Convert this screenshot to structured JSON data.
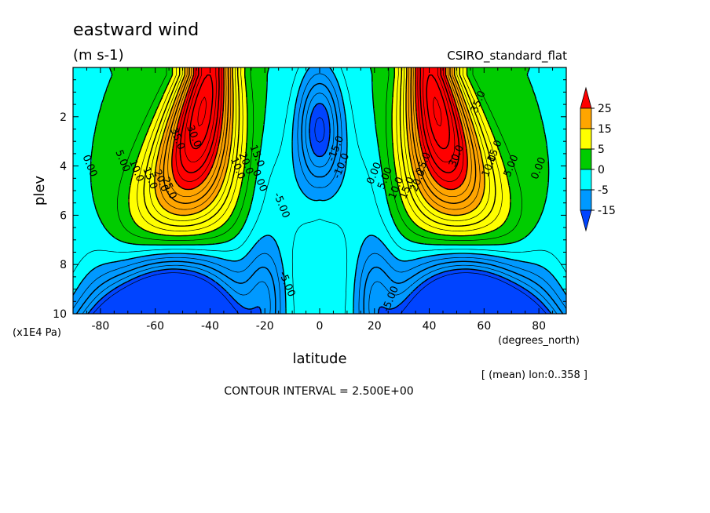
{
  "header": {
    "title": "eastward wind",
    "units": "(m s-1)",
    "colormap_name": "CSIRO_standard_flat"
  },
  "footer": {
    "mean_note": "[ (mean) lon:0..358 ]",
    "contour_interval": "CONTOUR INTERVAL = 2.500E+00"
  },
  "chart_data": {
    "type": "heatmap",
    "title": "eastward wind",
    "subtitle": "(m s-1)",
    "xlabel": "latitude",
    "x_units": "(degrees_north)",
    "ylabel": "plev",
    "y_units": "(x1E4 Pa)",
    "xlim": [
      -90,
      90
    ],
    "ylim": [
      10,
      0
    ],
    "x_ticks": [
      -80,
      -60,
      -40,
      -20,
      0,
      20,
      40,
      60,
      80
    ],
    "y_ticks": [
      2,
      4,
      6,
      8,
      10
    ],
    "contour_interval": 2.5,
    "colorbar": {
      "labels": [
        "25",
        "15",
        "5",
        "0",
        "-5",
        "-15"
      ],
      "levels": [
        {
          "range": ">25",
          "color": "#ff0000"
        },
        {
          "range": "15 to 25",
          "color": "#ffa500"
        },
        {
          "range": "5 to 15",
          "color": "#ffff00"
        },
        {
          "range": "0 to 5",
          "color": "#00cc00"
        },
        {
          "range": "-5 to 0",
          "color": "#00ffff"
        },
        {
          "range": "-15 to -5",
          "color": "#0099ff"
        },
        {
          "range": "<-15",
          "color": "#0044ff"
        }
      ]
    },
    "features": [
      {
        "name": "southern jet core",
        "lat": -48,
        "plev": 2,
        "u": 35
      },
      {
        "name": "northern jet core",
        "lat": 48,
        "plev": 2,
        "u": 35
      },
      {
        "name": "equatorial easterlies",
        "lat": 0,
        "plev": 2.5,
        "u": -17.5
      },
      {
        "name": "southern tropical easterlies",
        "lat": -20,
        "plev": 9.2,
        "u": -7.5
      },
      {
        "name": "northern tropical easterlies",
        "lat": 20,
        "plev": 9.2,
        "u": -7.5
      }
    ],
    "contour_labels": [
      "0.00",
      "5.00",
      "10.0",
      "15.0",
      "20.0",
      "25.0",
      "30.0",
      "35.0",
      "-5.00",
      "-10.0",
      "-15.0"
    ]
  }
}
